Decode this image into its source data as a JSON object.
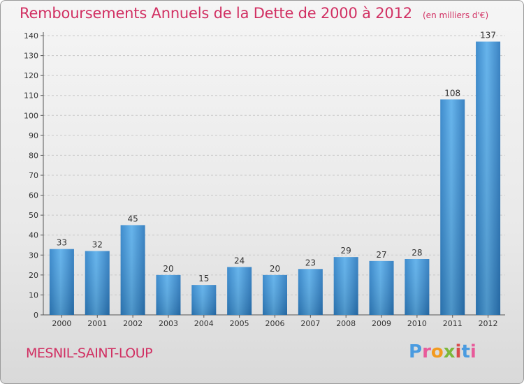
{
  "chart_data": {
    "type": "bar",
    "title": "Remboursements Annuels de la Dette de 2000 à 2012",
    "unit_label": "(en milliers d'€)",
    "categories": [
      "2000",
      "2001",
      "2002",
      "2003",
      "2004",
      "2005",
      "2006",
      "2007",
      "2008",
      "2009",
      "2010",
      "2011",
      "2012"
    ],
    "values": [
      33,
      32,
      45,
      20,
      15,
      24,
      20,
      23,
      29,
      27,
      28,
      108,
      137
    ],
    "ylim": [
      0,
      140
    ],
    "yticks": [
      0,
      10,
      20,
      30,
      40,
      50,
      60,
      70,
      80,
      90,
      100,
      110,
      120,
      130,
      140
    ],
    "grid": true,
    "bar_color": "#3d95d6"
  },
  "footer": {
    "city": "MESNIL-SAINT-LOUP",
    "logo_text": "Proxiti",
    "logo_colors": [
      "#4a9be0",
      "#e85b9a",
      "#f39a1e",
      "#7cb83a",
      "#d94b4b",
      "#4a9be0",
      "#e85b9a"
    ]
  }
}
